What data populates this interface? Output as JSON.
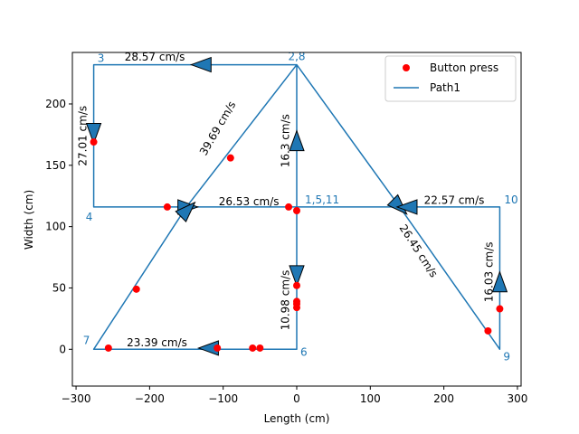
{
  "chart_data": {
    "type": "line",
    "xlabel": "Length (cm)",
    "ylabel": "Width (cm)",
    "xlim": [
      -305,
      305
    ],
    "ylim": [
      -30,
      242
    ],
    "xticks": [
      -300,
      -200,
      -100,
      0,
      100,
      200,
      300
    ],
    "yticks": [
      0,
      50,
      100,
      150,
      200
    ],
    "grid": false,
    "legend_position": "top-right",
    "legend": [
      {
        "name": "Button press",
        "marker": "circle",
        "color": "#ff0000"
      },
      {
        "name": "Path1",
        "marker": "line",
        "color": "#1f77b4"
      }
    ],
    "path": {
      "name": "Path1",
      "color": "#1f77b4",
      "x": [
        0,
        -276,
        -276,
        -150,
        0,
        0,
        0,
        -276,
        -150,
        0,
        140,
        276,
        276,
        140,
        0
      ],
      "y": [
        232,
        232,
        116,
        116,
        116,
        232,
        0,
        0,
        116,
        232,
        116,
        116,
        0,
        116,
        116
      ]
    },
    "button_press": {
      "name": "Button press",
      "color": "#ff0000",
      "x": [
        -276,
        -176,
        -90,
        -11,
        0,
        0,
        0,
        0,
        0,
        -50,
        -60,
        -108,
        -256,
        -218,
        260,
        276
      ],
      "y": [
        169,
        116,
        156,
        116,
        113,
        52,
        39,
        37,
        34,
        1,
        1,
        1,
        1,
        49,
        15,
        33
      ]
    },
    "arrows": [
      {
        "x": -130,
        "y": 232,
        "direction": "left"
      },
      {
        "x": -276,
        "y": 176,
        "direction": "down"
      },
      {
        "x": -148,
        "y": 116,
        "direction": "right"
      },
      {
        "x": 0,
        "y": 170,
        "direction": "up"
      },
      {
        "x": 0,
        "y": 60,
        "direction": "down"
      },
      {
        "x": -120,
        "y": 1,
        "direction": "left"
      },
      {
        "x": -148,
        "y": 114,
        "direction": "up-right"
      },
      {
        "x": 140,
        "y": 116,
        "direction": "down-right"
      },
      {
        "x": 150,
        "y": 116,
        "direction": "left"
      },
      {
        "x": 276,
        "y": 55,
        "direction": "up"
      }
    ],
    "node_labels": [
      {
        "text": "2,8",
        "x": 0,
        "y": 232
      },
      {
        "text": "3",
        "x": -276,
        "y": 232
      },
      {
        "text": "4",
        "x": -276,
        "y": 116
      },
      {
        "text": "1,5,11",
        "x": 0,
        "y": 116
      },
      {
        "text": "10",
        "x": 276,
        "y": 116
      },
      {
        "text": "7",
        "x": -276,
        "y": 0
      },
      {
        "text": "6",
        "x": 0,
        "y": 0
      },
      {
        "text": "9",
        "x": 276,
        "y": 0
      }
    ],
    "speed_labels": [
      {
        "text": "28.57 cm/s",
        "x": -193,
        "y": 238,
        "rotation": 0
      },
      {
        "text": "27.01 cm/s",
        "x": -290,
        "y": 174,
        "rotation": -90
      },
      {
        "text": "39.69 cm/s",
        "x": -107,
        "y": 180,
        "rotation": -60
      },
      {
        "text": "16.3 cm/s",
        "x": -15,
        "y": 170,
        "rotation": -90
      },
      {
        "text": "26.53 cm/s",
        "x": -65,
        "y": 120,
        "rotation": 0
      },
      {
        "text": "22.57 cm/s",
        "x": 214,
        "y": 121,
        "rotation": 0
      },
      {
        "text": "26.45 cm/s",
        "x": 165,
        "y": 80,
        "rotation": 57
      },
      {
        "text": "16.03 cm/s",
        "x": 262,
        "y": 63,
        "rotation": -90
      },
      {
        "text": "10.98 cm/s",
        "x": -15,
        "y": 40,
        "rotation": -90
      },
      {
        "text": "23.39 cm/s",
        "x": -190,
        "y": 5,
        "rotation": 0
      }
    ]
  }
}
